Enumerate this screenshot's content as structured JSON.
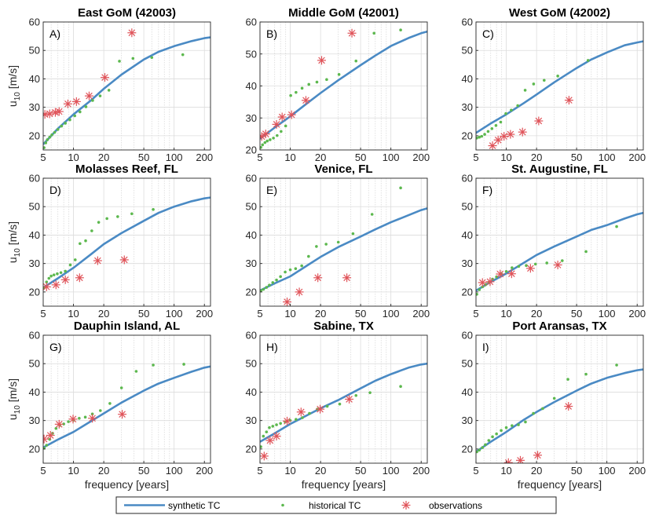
{
  "colors": {
    "synthetic": "#4a8ac4",
    "historical": "#5cb84e",
    "observations": "#e0545a",
    "grid": "#dcdcdc",
    "axis": "#262626"
  },
  "legend": {
    "synthetic_label": "synthetic TC",
    "historical_label": "historical TC",
    "observations_label": "observations"
  },
  "chart_data": [
    {
      "type": "line",
      "panel": "A)",
      "title": "East GoM (42003)",
      "xlabel": "",
      "ylabel": "u10 [m/s]",
      "xscale": "log",
      "xlim": [
        5,
        230
      ],
      "ylim": [
        15,
        60
      ],
      "xticks": [
        5,
        10,
        20,
        50,
        100,
        200
      ],
      "yticks": [
        20,
        30,
        40,
        50,
        60
      ],
      "series": [
        {
          "name": "synthetic TC",
          "kind": "line",
          "x": [
            5,
            7,
            10,
            15,
            20,
            30,
            50,
            70,
            100,
            150,
            200,
            230
          ],
          "y": [
            17,
            22.5,
            27.5,
            32.5,
            36.5,
            41.5,
            46.8,
            49.5,
            51.5,
            53.3,
            54.3,
            54.6
          ]
        },
        {
          "name": "historical TC",
          "kind": "points",
          "x": [
            5.1,
            5.3,
            5.5,
            5.8,
            6.1,
            6.5,
            7,
            7.6,
            8.3,
            9.2,
            10.3,
            11.6,
            13.3,
            15.5,
            18.4,
            22.5,
            28.6,
            39,
            60,
            122
          ],
          "y": [
            15.8,
            17.5,
            18.6,
            19.5,
            20.3,
            21.2,
            22.2,
            23.4,
            24.4,
            25.6,
            27,
            28.4,
            30.2,
            32.4,
            34,
            36,
            46.2,
            47.2,
            47.5,
            48.5
          ]
        },
        {
          "name": "observations",
          "kind": "markers",
          "x": [
            5.2,
            5.8,
            6.6,
            7.2,
            8.8,
            10.7,
            14.3,
            20.5,
            38
          ],
          "y": [
            27.5,
            27.7,
            28.2,
            28.5,
            31.2,
            32,
            34,
            40.5,
            56.2
          ]
        }
      ]
    },
    {
      "type": "line",
      "panel": "B)",
      "title": "Middle GoM (42001)",
      "xlabel": "",
      "ylabel": "",
      "xscale": "log",
      "xlim": [
        5,
        230
      ],
      "ylim": [
        20,
        60
      ],
      "xticks": [
        5,
        10,
        20,
        50,
        100,
        200
      ],
      "yticks": [
        20,
        30,
        40,
        50,
        60
      ],
      "series": [
        {
          "name": "synthetic TC",
          "kind": "line",
          "x": [
            5,
            7,
            10,
            15,
            20,
            30,
            50,
            70,
            100,
            150,
            200,
            230
          ],
          "y": [
            23.5,
            27,
            30.5,
            34.8,
            37.8,
            41.8,
            46.5,
            49.5,
            52.5,
            55,
            56.5,
            57
          ]
        },
        {
          "name": "historical TC",
          "kind": "points",
          "x": [
            5.1,
            5.3,
            5.6,
            5.9,
            6.3,
            6.8,
            7.4,
            8.1,
            9,
            10.1,
            11.4,
            13.1,
            15.3,
            18.4,
            23,
            30.5,
            45,
            68,
            125
          ],
          "y": [
            20.8,
            21.6,
            22.3,
            22.8,
            23.2,
            23.7,
            24.5,
            25.8,
            27.5,
            37,
            38,
            39.3,
            40.5,
            41.2,
            42,
            43.6,
            47.8,
            56.5,
            57.5
          ]
        },
        {
          "name": "observations",
          "kind": "markers",
          "x": [
            5.2,
            5.7,
            7.3,
            8.3,
            10.3,
            14.3,
            20.5,
            41
          ],
          "y": [
            24.2,
            25,
            28,
            30.3,
            31,
            35.5,
            48,
            56.5
          ]
        }
      ]
    },
    {
      "type": "line",
      "panel": "C)",
      "title": "West GoM (42002)",
      "xlabel": "",
      "ylabel": "",
      "xscale": "log",
      "xlim": [
        5,
        230
      ],
      "ylim": [
        15,
        60
      ],
      "xticks": [
        5,
        10,
        20,
        50,
        100,
        200
      ],
      "yticks": [
        20,
        30,
        40,
        50,
        60
      ],
      "series": [
        {
          "name": "synthetic TC",
          "kind": "line",
          "x": [
            5,
            7,
            10,
            15,
            20,
            30,
            50,
            70,
            100,
            150,
            200,
            230
          ],
          "y": [
            21,
            24.3,
            27.5,
            31.5,
            34.5,
            38.8,
            43.8,
            46.8,
            49.3,
            51.8,
            52.8,
            53.2
          ]
        },
        {
          "name": "historical TC",
          "kind": "points",
          "x": [
            5.1,
            5.4,
            5.7,
            6.1,
            6.6,
            7.2,
            7.9,
            8.8,
            9.9,
            11.2,
            13,
            15.4,
            18.7,
            23.8,
            32.5,
            65
          ],
          "y": [
            19.2,
            19.5,
            19.8,
            20.5,
            21.5,
            22.5,
            23.6,
            24.8,
            27.8,
            29,
            30.6,
            36,
            38.2,
            39.5,
            41,
            46.5
          ]
        },
        {
          "name": "observations",
          "kind": "markers",
          "x": [
            7.3,
            8.3,
            9.5,
            11,
            14.5,
            21,
            42
          ],
          "y": [
            16.5,
            18.5,
            19.8,
            20.5,
            21.3,
            25.2,
            32.5
          ]
        }
      ]
    },
    {
      "type": "line",
      "panel": "D)",
      "title": "Molasses Reef, FL",
      "xlabel": "",
      "ylabel": "u10 [m/s]",
      "xscale": "log",
      "xlim": [
        5,
        230
      ],
      "ylim": [
        15,
        60
      ],
      "xticks": [
        5,
        10,
        20,
        50,
        100,
        200
      ],
      "yticks": [
        20,
        30,
        40,
        50,
        60
      ],
      "series": [
        {
          "name": "synthetic TC",
          "kind": "line",
          "x": [
            5,
            7,
            10,
            15,
            20,
            30,
            50,
            70,
            100,
            150,
            200,
            230
          ],
          "y": [
            21.5,
            24.8,
            28.5,
            33.3,
            36.8,
            40.7,
            45,
            47.8,
            50,
            51.9,
            52.9,
            53.2
          ]
        },
        {
          "name": "historical TC",
          "kind": "points",
          "x": [
            5.1,
            5.4,
            5.7,
            6,
            6.4,
            6.9,
            7.5,
            8.3,
            9.3,
            10.4,
            11.6,
            13.2,
            15.2,
            17.8,
            21.5,
            27.5,
            38,
            62
          ],
          "y": [
            21.5,
            23.5,
            24.8,
            25.6,
            26,
            26.4,
            26.8,
            27.3,
            29.5,
            31.3,
            37,
            38,
            41.5,
            44.5,
            45.8,
            46.5,
            47.5,
            49
          ]
        },
        {
          "name": "observations",
          "kind": "markers",
          "x": [
            5.4,
            6.7,
            8.3,
            11.5,
            17.4,
            32
          ],
          "y": [
            21.8,
            22.5,
            24.3,
            25,
            31,
            31.3
          ]
        }
      ]
    },
    {
      "type": "line",
      "panel": "E)",
      "title": "Venice, FL",
      "xlabel": "",
      "ylabel": "",
      "xscale": "log",
      "xlim": [
        5,
        230
      ],
      "ylim": [
        15,
        60
      ],
      "xticks": [
        5,
        10,
        20,
        50,
        100,
        200
      ],
      "yticks": [
        20,
        30,
        40,
        50,
        60
      ],
      "series": [
        {
          "name": "synthetic TC",
          "kind": "line",
          "x": [
            5,
            7,
            10,
            15,
            20,
            30,
            50,
            70,
            100,
            150,
            200,
            230
          ],
          "y": [
            20.5,
            23,
            25.5,
            29.5,
            32.3,
            35.8,
            39.5,
            42,
            44.5,
            47,
            48.8,
            49.4
          ]
        },
        {
          "name": "historical TC",
          "kind": "points",
          "x": [
            5.1,
            5.4,
            5.8,
            6.2,
            6.7,
            7.3,
            8,
            8.9,
            10,
            11.3,
            13,
            15.2,
            18.2,
            22.7,
            30,
            42,
            65,
            125
          ],
          "y": [
            20.4,
            20.9,
            21.6,
            22.4,
            23.3,
            24.2,
            25.4,
            27,
            27.8,
            28.2,
            29.2,
            32.5,
            36,
            36.8,
            37.5,
            40.5,
            47.3,
            56.6
          ]
        },
        {
          "name": "observations",
          "kind": "markers",
          "x": [
            9.3,
            12.3,
            18.8,
            36.5
          ],
          "y": [
            16.5,
            20,
            25,
            25
          ]
        }
      ]
    },
    {
      "type": "line",
      "panel": "F)",
      "title": "St. Augustine, FL",
      "xlabel": "",
      "ylabel": "",
      "xscale": "log",
      "xlim": [
        5,
        230
      ],
      "ylim": [
        15,
        60
      ],
      "xticks": [
        5,
        10,
        20,
        50,
        100,
        200
      ],
      "yticks": [
        20,
        30,
        40,
        50,
        60
      ],
      "series": [
        {
          "name": "synthetic TC",
          "kind": "line",
          "x": [
            5,
            7,
            10,
            15,
            20,
            30,
            50,
            70,
            100,
            150,
            200,
            230
          ],
          "y": [
            20.5,
            23.5,
            26.5,
            30.3,
            33,
            36,
            39.5,
            41.8,
            43.5,
            45.8,
            47.3,
            47.8
          ]
        },
        {
          "name": "historical TC",
          "kind": "points",
          "x": [
            5.1,
            5.4,
            5.8,
            6.2,
            6.7,
            7.3,
            8,
            8.9,
            10,
            11.4,
            13.3,
            15.8,
            19.5,
            25.3,
            36,
            62,
            125
          ],
          "y": [
            19.2,
            20.8,
            21.8,
            22.5,
            23.4,
            24.5,
            25.3,
            26.5,
            27.2,
            28.5,
            29,
            29.3,
            29.8,
            30.2,
            31,
            34.2,
            43
          ]
        },
        {
          "name": "observations",
          "kind": "markers",
          "x": [
            5.8,
            6.9,
            8.7,
            11.3,
            17.4,
            32.5
          ],
          "y": [
            23.3,
            23.6,
            26.3,
            26.4,
            28.3,
            29.5
          ]
        }
      ]
    },
    {
      "type": "line",
      "panel": "G)",
      "title": "Dauphin Island, AL",
      "xlabel": "frequency [years]",
      "ylabel": "u10 [m/s]",
      "xscale": "log",
      "xlim": [
        5,
        230
      ],
      "ylim": [
        15,
        60
      ],
      "xticks": [
        5,
        10,
        20,
        50,
        100,
        200
      ],
      "yticks": [
        20,
        30,
        40,
        50,
        60
      ],
      "series": [
        {
          "name": "synthetic TC",
          "kind": "line",
          "x": [
            5,
            7,
            10,
            15,
            20,
            30,
            50,
            70,
            100,
            150,
            200,
            230
          ],
          "y": [
            20.5,
            23.3,
            26,
            29.8,
            32.5,
            36.3,
            40.5,
            43,
            45,
            47.2,
            48.6,
            49
          ]
        },
        {
          "name": "historical TC",
          "kind": "points",
          "x": [
            5.1,
            5.4,
            5.8,
            6.2,
            6.7,
            7.3,
            8,
            8.9,
            10,
            11.4,
            13.1,
            15.4,
            18.5,
            23,
            30,
            42,
            62,
            125
          ],
          "y": [
            20.3,
            21.3,
            23.4,
            25.5,
            27.2,
            28.3,
            28.8,
            29.6,
            30.1,
            30.8,
            31.2,
            32.3,
            33.5,
            36,
            41.5,
            47.3,
            49.5,
            49.8
          ]
        },
        {
          "name": "observations",
          "kind": "markers",
          "x": [
            5.1,
            5.9,
            7.2,
            9.9,
            15.4,
            30.5
          ],
          "y": [
            23.5,
            24.8,
            28.7,
            30.5,
            30.8,
            32.2
          ]
        }
      ]
    },
    {
      "type": "line",
      "panel": "H)",
      "title": "Sabine, TX",
      "xlabel": "frequency [years]",
      "ylabel": "",
      "xscale": "log",
      "xlim": [
        5,
        230
      ],
      "ylim": [
        15,
        60
      ],
      "xticks": [
        5,
        10,
        20,
        50,
        100,
        200
      ],
      "yticks": [
        20,
        30,
        40,
        50,
        60
      ],
      "series": [
        {
          "name": "synthetic TC",
          "kind": "line",
          "x": [
            5,
            7,
            10,
            15,
            20,
            30,
            50,
            70,
            100,
            150,
            200,
            230
          ],
          "y": [
            22.5,
            25.5,
            28.8,
            32,
            34.3,
            37.2,
            41.3,
            44,
            46.3,
            48.6,
            49.7,
            50
          ]
        },
        {
          "name": "historical TC",
          "kind": "points",
          "x": [
            5.1,
            5.4,
            5.8,
            6.2,
            6.7,
            7.3,
            8,
            8.9,
            10,
            11.4,
            13.2,
            15.5,
            18.6,
            23.3,
            31,
            45,
            62,
            125
          ],
          "y": [
            20.8,
            24.5,
            26,
            27.5,
            28,
            28.5,
            29,
            29.5,
            30,
            30.4,
            31,
            32.5,
            34,
            35,
            35.8,
            38.8,
            39.8,
            42
          ]
        },
        {
          "name": "observations",
          "kind": "markers",
          "x": [
            5.5,
            6.3,
            7.3,
            9.3,
            12.8,
            19.8,
            38.5
          ],
          "y": [
            17.5,
            23,
            24.5,
            29.8,
            33,
            34,
            37.5
          ]
        }
      ]
    },
    {
      "type": "line",
      "panel": "I)",
      "title": "Port Aransas, TX",
      "xlabel": "frequency [years]",
      "ylabel": "",
      "xscale": "log",
      "xlim": [
        5,
        230
      ],
      "ylim": [
        15,
        60
      ],
      "xticks": [
        5,
        10,
        20,
        50,
        100,
        200
      ],
      "yticks": [
        20,
        30,
        40,
        50,
        60
      ],
      "series": [
        {
          "name": "synthetic TC",
          "kind": "line",
          "x": [
            5,
            7,
            10,
            15,
            20,
            30,
            50,
            70,
            100,
            150,
            200,
            230
          ],
          "y": [
            19,
            22.5,
            26,
            30.3,
            33,
            36.5,
            40.5,
            43,
            45,
            46.7,
            47.7,
            48
          ]
        },
        {
          "name": "historical TC",
          "kind": "points",
          "x": [
            5.1,
            5.4,
            5.8,
            6.2,
            6.7,
            7.3,
            8,
            8.9,
            10,
            11.4,
            13.2,
            15.5,
            18.6,
            23,
            30,
            41,
            62,
            125
          ],
          "y": [
            19,
            19.6,
            20.5,
            21.5,
            23,
            24.3,
            25.3,
            26.5,
            27.5,
            28.2,
            28.5,
            29.5,
            32.5,
            34.2,
            37.8,
            44.5,
            46.3,
            49.5
          ]
        },
        {
          "name": "observations",
          "kind": "markers",
          "x": [
            10.5,
            13.8,
            20.5,
            41.5
          ],
          "y": [
            15.2,
            16,
            17.8,
            35
          ]
        }
      ]
    }
  ]
}
